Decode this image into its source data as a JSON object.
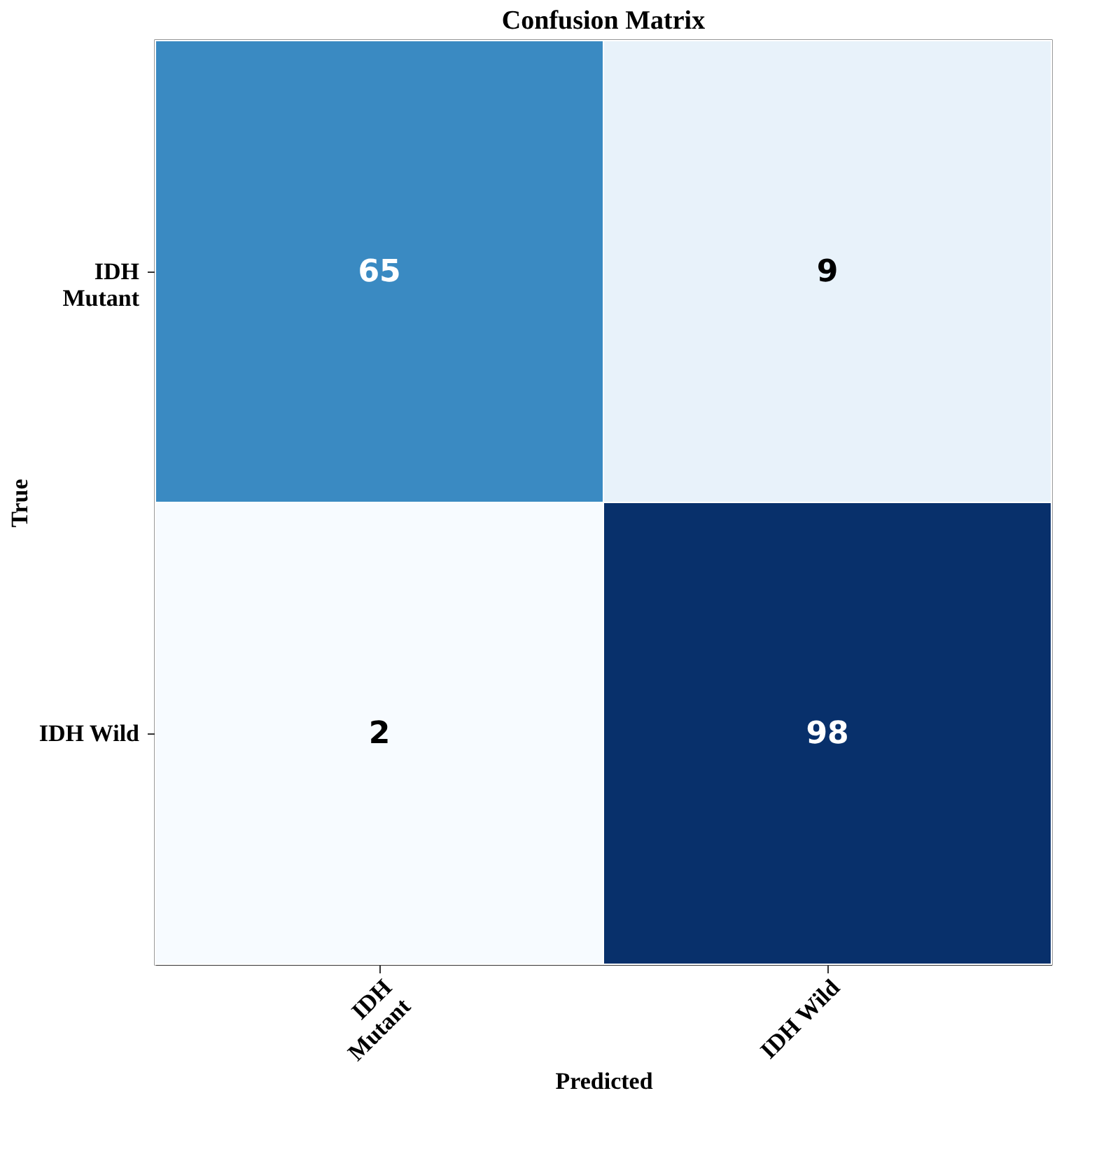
{
  "chart_data": {
    "type": "heatmap",
    "title": "Confusion Matrix",
    "xlabel": "Predicted",
    "ylabel": "True",
    "categories": [
      "IDH\nMutant",
      "IDH Wild"
    ],
    "y_categories": [
      "IDH\nMutant",
      "IDH Wild"
    ],
    "cells": [
      [
        65,
        9
      ],
      [
        2,
        98
      ]
    ],
    "data_labels": true,
    "legend": false
  }
}
